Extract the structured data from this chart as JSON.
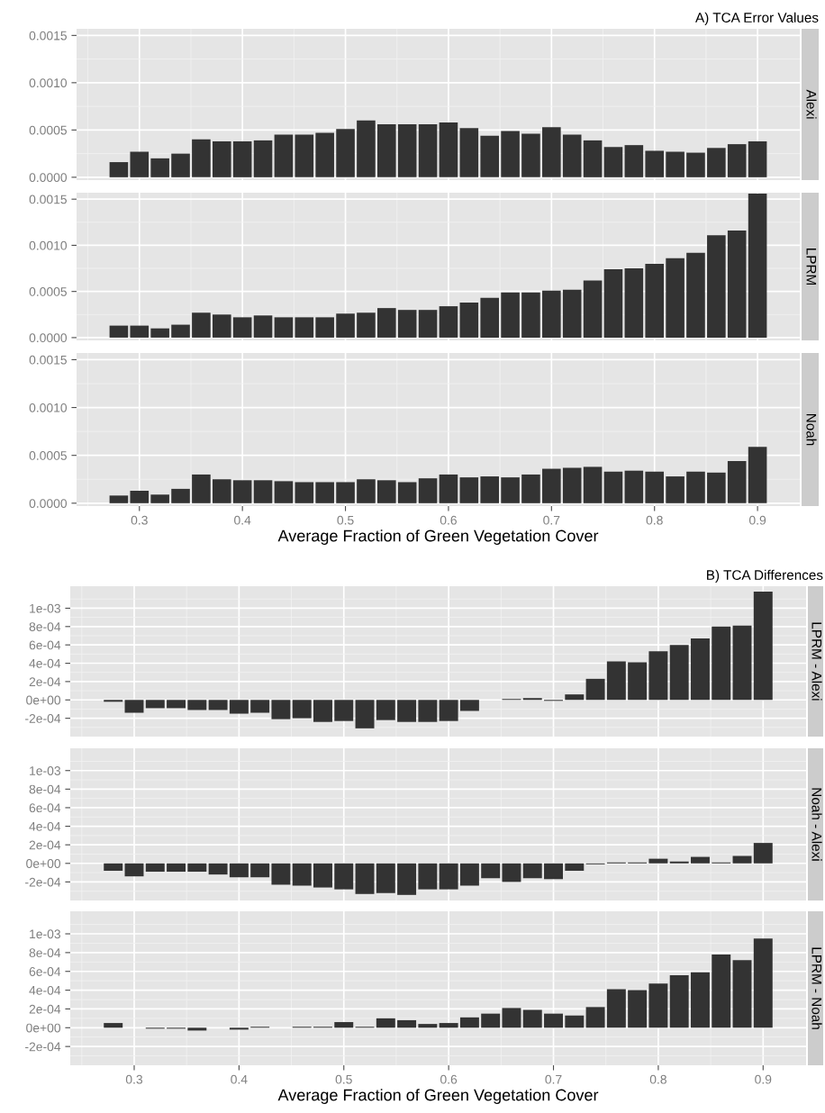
{
  "chart_data": [
    {
      "type": "bar",
      "title": "A) TCA Error Values",
      "subtitle": "Alexi",
      "color": "#333333",
      "grid": true,
      "tick_labels": "y",
      "x": [
        0.28,
        0.3,
        0.32,
        0.34,
        0.36,
        0.38,
        0.4,
        0.42,
        0.44,
        0.46,
        0.48,
        0.5,
        0.52,
        0.54,
        0.56,
        0.58,
        0.6,
        0.62,
        0.64,
        0.66,
        0.68,
        0.7,
        0.72,
        0.74,
        0.76,
        0.78,
        0.8,
        0.82,
        0.84,
        0.86,
        0.88,
        0.9
      ],
      "values": [
        0.00016,
        0.00027,
        0.0002,
        0.00025,
        0.0004,
        0.00038,
        0.00038,
        0.00039,
        0.00045,
        0.00045,
        0.00047,
        0.00051,
        0.0006,
        0.00056,
        0.00056,
        0.00056,
        0.00058,
        0.00052,
        0.00044,
        0.00049,
        0.00046,
        0.00053,
        0.00045,
        0.00039,
        0.00032,
        0.00034,
        0.00028,
        0.00027,
        0.00026,
        0.00031,
        0.00035,
        0.00038
      ],
      "xlim": [
        0.239,
        0.941
      ],
      "xticks": [
        0.3,
        0.4,
        0.5,
        0.6,
        0.7,
        0.8,
        0.9
      ],
      "ylim": [
        -3e-05,
        0.00157
      ],
      "yticks": [
        {
          "value": 0,
          "label": "0.0000"
        },
        {
          "value": 0.0005,
          "label": "0.0005"
        },
        {
          "value": 0.001,
          "label": "0.0010"
        },
        {
          "value": 0.0015,
          "label": "0.0015"
        }
      ]
    },
    {
      "type": "bar",
      "subtitle": "LPRM",
      "color": "#333333",
      "grid": true,
      "tick_labels": "y",
      "x": [
        0.28,
        0.3,
        0.32,
        0.34,
        0.36,
        0.38,
        0.4,
        0.42,
        0.44,
        0.46,
        0.48,
        0.5,
        0.52,
        0.54,
        0.56,
        0.58,
        0.6,
        0.62,
        0.64,
        0.66,
        0.68,
        0.7,
        0.72,
        0.74,
        0.76,
        0.78,
        0.8,
        0.82,
        0.84,
        0.86,
        0.88,
        0.9
      ],
      "values": [
        0.00013,
        0.00013,
        0.0001,
        0.00014,
        0.00027,
        0.00025,
        0.00022,
        0.00024,
        0.00022,
        0.00022,
        0.00022,
        0.00026,
        0.00027,
        0.00032,
        0.0003,
        0.0003,
        0.00034,
        0.00038,
        0.00043,
        0.00049,
        0.00049,
        0.00051,
        0.00052,
        0.00062,
        0.00074,
        0.00075,
        0.0008,
        0.00086,
        0.00092,
        0.00111,
        0.00116,
        0.00156
      ],
      "xlim": [
        0.239,
        0.941
      ],
      "xticks": [
        0.3,
        0.4,
        0.5,
        0.6,
        0.7,
        0.8,
        0.9
      ],
      "ylim": [
        -3e-05,
        0.00157
      ],
      "yticks": [
        {
          "value": 0,
          "label": "0.0000"
        },
        {
          "value": 0.0005,
          "label": "0.0005"
        },
        {
          "value": 0.001,
          "label": "0.0010"
        },
        {
          "value": 0.0015,
          "label": "0.0015"
        }
      ]
    },
    {
      "type": "bar",
      "subtitle": "Noah",
      "xlabel": "Average Fraction of Green Vegetation Cover",
      "color": "#333333",
      "grid": true,
      "x": [
        0.28,
        0.3,
        0.32,
        0.34,
        0.36,
        0.38,
        0.4,
        0.42,
        0.44,
        0.46,
        0.48,
        0.5,
        0.52,
        0.54,
        0.56,
        0.58,
        0.6,
        0.62,
        0.64,
        0.66,
        0.68,
        0.7,
        0.72,
        0.74,
        0.76,
        0.78,
        0.8,
        0.82,
        0.84,
        0.86,
        0.88,
        0.9
      ],
      "values": [
        8e-05,
        0.00013,
        9e-05,
        0.00015,
        0.0003,
        0.00025,
        0.00024,
        0.00024,
        0.00023,
        0.00022,
        0.00022,
        0.00022,
        0.00025,
        0.00024,
        0.00022,
        0.00026,
        0.0003,
        0.00027,
        0.00028,
        0.00027,
        0.0003,
        0.00036,
        0.00037,
        0.00038,
        0.00033,
        0.00034,
        0.00033,
        0.00028,
        0.00033,
        0.00032,
        0.00044,
        0.00059
      ],
      "xlim": [
        0.239,
        0.941
      ],
      "xticks": [
        0.3,
        0.4,
        0.5,
        0.6,
        0.7,
        0.8,
        0.9
      ],
      "ylim": [
        -3e-05,
        0.00157
      ],
      "yticks": [
        {
          "value": 0,
          "label": "0.0000"
        },
        {
          "value": 0.0005,
          "label": "0.0005"
        },
        {
          "value": 0.001,
          "label": "0.0010"
        },
        {
          "value": 0.0015,
          "label": "0.0015"
        }
      ]
    },
    {
      "type": "bar",
      "title": "B) TCA Differences",
      "subtitle": "LPRM - Alexi",
      "color": "#333333",
      "grid": true,
      "tick_labels": "y",
      "x": [
        0.28,
        0.3,
        0.32,
        0.34,
        0.36,
        0.38,
        0.4,
        0.42,
        0.44,
        0.46,
        0.48,
        0.5,
        0.52,
        0.54,
        0.56,
        0.58,
        0.6,
        0.62,
        0.64,
        0.66,
        0.68,
        0.7,
        0.72,
        0.74,
        0.76,
        0.78,
        0.8,
        0.82,
        0.84,
        0.86,
        0.88,
        0.9
      ],
      "values": [
        -2e-05,
        -0.00014,
        -9e-05,
        -9e-05,
        -0.00011,
        -0.00011,
        -0.00015,
        -0.00014,
        -0.00021,
        -0.0002,
        -0.00024,
        -0.00023,
        -0.00031,
        -0.00022,
        -0.00024,
        -0.00024,
        -0.00023,
        -0.00012,
        0,
        1e-05,
        2e-05,
        -1e-05,
        6e-05,
        0.00023,
        0.00042,
        0.00041,
        0.00053,
        0.0006,
        0.00067,
        0.0008,
        0.00081,
        0.00118
      ],
      "xlim": [
        0.239,
        0.941
      ],
      "xticks": [
        0.3,
        0.4,
        0.5,
        0.6,
        0.7,
        0.8,
        0.9
      ],
      "ylim": [
        -0.0004,
        0.00124
      ],
      "yticks": [
        {
          "value": -0.0002,
          "label": "-2e-04"
        },
        {
          "value": 0,
          "label": "0e+00"
        },
        {
          "value": 0.0002,
          "label": "2e-04"
        },
        {
          "value": 0.0004,
          "label": "4e-04"
        },
        {
          "value": 0.0006,
          "label": "6e-04"
        },
        {
          "value": 0.0008,
          "label": "8e-04"
        },
        {
          "value": 0.001,
          "label": "1e-03"
        }
      ]
    },
    {
      "type": "bar",
      "subtitle": "Noah - Alexi",
      "color": "#333333",
      "grid": true,
      "tick_labels": "y",
      "x": [
        0.28,
        0.3,
        0.32,
        0.34,
        0.36,
        0.38,
        0.4,
        0.42,
        0.44,
        0.46,
        0.48,
        0.5,
        0.52,
        0.54,
        0.56,
        0.58,
        0.6,
        0.62,
        0.64,
        0.66,
        0.68,
        0.7,
        0.72,
        0.74,
        0.76,
        0.78,
        0.8,
        0.82,
        0.84,
        0.86,
        0.88,
        0.9
      ],
      "values": [
        -8e-05,
        -0.00014,
        -9e-05,
        -9e-05,
        -9e-05,
        -0.00012,
        -0.00015,
        -0.00015,
        -0.00023,
        -0.00024,
        -0.00026,
        -0.00028,
        -0.00033,
        -0.00032,
        -0.00034,
        -0.00028,
        -0.00028,
        -0.00024,
        -0.00016,
        -0.0002,
        -0.00016,
        -0.00017,
        -8e-05,
        -1e-05,
        1e-05,
        1e-05,
        5e-05,
        2e-05,
        7e-05,
        1e-05,
        8e-05,
        0.00022
      ],
      "xlim": [
        0.239,
        0.941
      ],
      "xticks": [
        0.3,
        0.4,
        0.5,
        0.6,
        0.7,
        0.8,
        0.9
      ],
      "ylim": [
        -0.0004,
        0.00124
      ],
      "yticks": [
        {
          "value": -0.0002,
          "label": "-2e-04"
        },
        {
          "value": 0,
          "label": "0e+00"
        },
        {
          "value": 0.0002,
          "label": "2e-04"
        },
        {
          "value": 0.0004,
          "label": "4e-04"
        },
        {
          "value": 0.0006,
          "label": "6e-04"
        },
        {
          "value": 0.0008,
          "label": "8e-04"
        },
        {
          "value": 0.001,
          "label": "1e-03"
        }
      ]
    },
    {
      "type": "bar",
      "subtitle": "LPRM - Noah",
      "xlabel": "Average Fraction of Green Vegetation Cover",
      "color": "#333333",
      "grid": true,
      "x": [
        0.28,
        0.3,
        0.32,
        0.34,
        0.36,
        0.38,
        0.4,
        0.42,
        0.44,
        0.46,
        0.48,
        0.5,
        0.52,
        0.54,
        0.56,
        0.58,
        0.6,
        0.62,
        0.64,
        0.66,
        0.68,
        0.7,
        0.72,
        0.74,
        0.76,
        0.78,
        0.8,
        0.82,
        0.84,
        0.86,
        0.88,
        0.9
      ],
      "values": [
        5e-05,
        0,
        -1e-05,
        -1e-05,
        -3e-05,
        0,
        -2e-05,
        1e-05,
        0,
        1e-05,
        1e-05,
        6e-05,
        1e-05,
        0.0001,
        8e-05,
        4e-05,
        5e-05,
        0.00011,
        0.00015,
        0.00021,
        0.00019,
        0.00015,
        0.00013,
        0.00022,
        0.00041,
        0.0004,
        0.00047,
        0.00056,
        0.00059,
        0.00078,
        0.00072,
        0.00095
      ],
      "xlim": [
        0.239,
        0.941
      ],
      "xticks": [
        0.3,
        0.4,
        0.5,
        0.6,
        0.7,
        0.8,
        0.9
      ],
      "ylim": [
        -0.0004,
        0.00124
      ],
      "yticks": [
        {
          "value": -0.0002,
          "label": "-2e-04"
        },
        {
          "value": 0,
          "label": "0e+00"
        },
        {
          "value": 0.0002,
          "label": "2e-04"
        },
        {
          "value": 0.0004,
          "label": "4e-04"
        },
        {
          "value": 0.0006,
          "label": "6e-04"
        },
        {
          "value": 0.0008,
          "label": "8e-04"
        },
        {
          "value": 0.001,
          "label": "1e-03"
        }
      ]
    }
  ]
}
